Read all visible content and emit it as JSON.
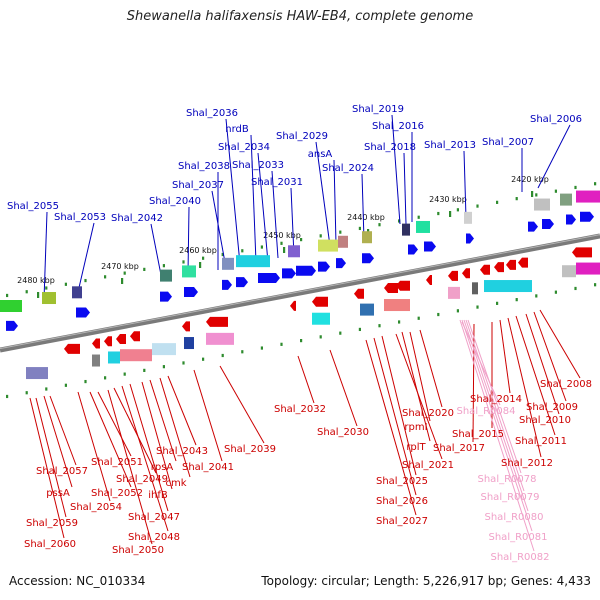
{
  "title": "Shewanella halifaxensis HAW-EB4, complete genome",
  "footer": {
    "accession": "Accession: NC_010334",
    "summary": "Topology: circular; Length: 5,226,917 bp; Genes: 4,433"
  },
  "colors": {
    "forward_label": "#0000bb",
    "reverse_label": "#cc0000",
    "rna_label": "#f0a0c8",
    "backbone": "#7a7a7a",
    "tick": "#2e8b2e"
  },
  "scale_ticks": [
    "2420 kbp",
    "2430 kbp",
    "2440 kbp",
    "2450 kbp",
    "2460 kbp",
    "2470 kbp",
    "2480 kbp"
  ],
  "forward_labels": [
    "Shal_2006",
    "Shal_2007",
    "Shal_2013",
    "Shal_2016",
    "Shal_2018",
    "Shal_2019",
    "Shal_2024",
    "ansA",
    "Shal_2029",
    "Shal_2031",
    "Shal_2033",
    "Shal_2034",
    "nrdB",
    "Shal_2036",
    "Shal_2037",
    "Shal_2038",
    "Shal_2040",
    "Shal_2042",
    "Shal_2053",
    "Shal_2055"
  ],
  "reverse_labels": [
    "Shal_2008",
    "Shal_2009",
    "Shal_2010",
    "Shal_2011",
    "Shal_2012",
    "Shal_2014",
    "Shal_2015",
    "Shal_2017",
    "Shal_2020",
    "rpmI",
    "rplT",
    "Shal_2021",
    "Shal_2025",
    "Shal_2026",
    "Shal_2027",
    "Shal_2030",
    "Shal_2032",
    "Shal_2039",
    "Shal_2041",
    "Shal_2043",
    "cmk",
    "rpsA",
    "ihfB",
    "Shal_2047",
    "Shal_2048",
    "Shal_2049",
    "Shal_2050",
    "Shal_2051",
    "Shal_2052",
    "Shal_2054",
    "Shal_2057",
    "pssA",
    "Shal_2059",
    "Shal_2060"
  ],
  "rna_labels": [
    "Shal_R0084",
    "Shal_R0078",
    "Shal_R0079",
    "Shal_R0080",
    "Shal_R0081",
    "Shal_R0082"
  ]
}
